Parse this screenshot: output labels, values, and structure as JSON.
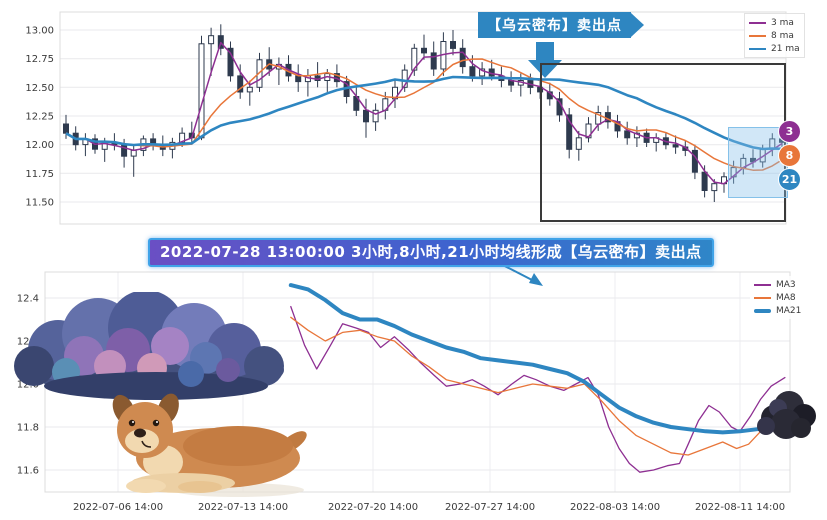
{
  "annotations": {
    "sell_callout": "【乌云密布】卖出点",
    "event_banner": "2022-07-28 13:00:00 3小时,8小时,21小时均线形成【乌云密布】卖出点"
  },
  "badges": [
    {
      "label": "3",
      "color": "#8e2f92"
    },
    {
      "label": "8",
      "color": "#e8763a"
    },
    {
      "label": "21",
      "color": "#2e86c1"
    }
  ],
  "colors": {
    "ma3": "#8e2f92",
    "ma8": "#e8763a",
    "ma21": "#2e86c1",
    "candle": "#2e3a4e",
    "banner_blue": "#2e86c1",
    "grid": "#e9e9ec",
    "highlight_box_border": "#3a3a3a",
    "highlight_region_fill": "#aed6f1"
  },
  "illustrations": [
    "storm-cloud-illustration",
    "dog-illustration",
    "dark-cloud-illustration"
  ],
  "chart_data": [
    {
      "type": "candlestick",
      "title": "",
      "legend": [
        "3 ma",
        "8 ma",
        "21 ma"
      ],
      "legend_position": "top-right",
      "grid": true,
      "ylim": [
        11.33,
        13.14
      ],
      "y_ticks": [
        "13.00",
        "12.75",
        "12.50",
        "12.25",
        "12.00",
        "11.75",
        "11.50"
      ],
      "overlays": [
        {
          "name": "3 ma",
          "type": "sma",
          "period": 3,
          "color": "#8e2f92"
        },
        {
          "name": "8 ma",
          "type": "sma",
          "period": 8,
          "color": "#e8763a"
        },
        {
          "name": "21 ma",
          "type": "sma",
          "period": 21,
          "color": "#2e86c1"
        }
      ],
      "annotations": {
        "callout": "【乌云密布】卖出点",
        "highlight_box_region": "declining right-hand section",
        "highlight_region": "final consolidation near moving-average cross"
      },
      "candles": [
        [
          12.18,
          12.26,
          12.05,
          12.1
        ],
        [
          12.1,
          12.16,
          11.95,
          12.0
        ],
        [
          12.0,
          12.1,
          11.9,
          12.05
        ],
        [
          12.05,
          12.09,
          11.92,
          11.96
        ],
        [
          11.96,
          12.06,
          11.85,
          12.02
        ],
        [
          12.02,
          12.1,
          11.95,
          12.0
        ],
        [
          12.0,
          12.05,
          11.8,
          11.9
        ],
        [
          11.9,
          12.0,
          11.72,
          11.95
        ],
        [
          11.95,
          12.08,
          11.9,
          12.05
        ],
        [
          12.05,
          12.1,
          11.95,
          12.0
        ],
        [
          12.0,
          12.08,
          11.9,
          11.96
        ],
        [
          11.96,
          12.06,
          11.88,
          12.02
        ],
        [
          12.02,
          12.15,
          11.98,
          12.1
        ],
        [
          12.1,
          12.2,
          12.0,
          12.06
        ],
        [
          12.06,
          12.95,
          12.04,
          12.88
        ],
        [
          12.88,
          13.02,
          12.6,
          12.95
        ],
        [
          12.95,
          13.05,
          12.78,
          12.84
        ],
        [
          12.84,
          12.9,
          12.55,
          12.6
        ],
        [
          12.6,
          12.7,
          12.4,
          12.46
        ],
        [
          12.46,
          12.56,
          12.34,
          12.5
        ],
        [
          12.5,
          12.8,
          12.46,
          12.74
        ],
        [
          12.74,
          12.85,
          12.6,
          12.66
        ],
        [
          12.66,
          12.76,
          12.52,
          12.7
        ],
        [
          12.7,
          12.78,
          12.55,
          12.6
        ],
        [
          12.6,
          12.7,
          12.46,
          12.55
        ],
        [
          12.55,
          12.66,
          12.42,
          12.6
        ],
        [
          12.6,
          12.72,
          12.5,
          12.56
        ],
        [
          12.56,
          12.66,
          12.46,
          12.62
        ],
        [
          12.62,
          12.7,
          12.5,
          12.55
        ],
        [
          12.55,
          12.6,
          12.36,
          12.42
        ],
        [
          12.42,
          12.5,
          12.25,
          12.3
        ],
        [
          12.3,
          12.4,
          12.06,
          12.2
        ],
        [
          12.2,
          12.36,
          12.12,
          12.3
        ],
        [
          12.3,
          12.46,
          12.22,
          12.4
        ],
        [
          12.4,
          12.56,
          12.32,
          12.5
        ],
        [
          12.5,
          12.7,
          12.46,
          12.65
        ],
        [
          12.65,
          12.88,
          12.6,
          12.84
        ],
        [
          12.84,
          12.96,
          12.74,
          12.8
        ],
        [
          12.8,
          12.9,
          12.6,
          12.66
        ],
        [
          12.66,
          12.98,
          12.6,
          12.9
        ],
        [
          12.9,
          13.0,
          12.78,
          12.84
        ],
        [
          12.84,
          12.92,
          12.62,
          12.68
        ],
        [
          12.68,
          12.78,
          12.55,
          12.6
        ],
        [
          12.6,
          12.72,
          12.52,
          12.66
        ],
        [
          12.66,
          12.74,
          12.56,
          12.6
        ],
        [
          12.6,
          12.68,
          12.5,
          12.56
        ],
        [
          12.56,
          12.64,
          12.46,
          12.52
        ],
        [
          12.52,
          12.62,
          12.42,
          12.56
        ],
        [
          12.56,
          12.62,
          12.44,
          12.5
        ],
        [
          12.5,
          12.58,
          12.4,
          12.46
        ],
        [
          12.46,
          12.54,
          12.34,
          12.4
        ],
        [
          12.4,
          12.46,
          12.2,
          12.26
        ],
        [
          12.26,
          12.32,
          11.88,
          11.96
        ],
        [
          11.96,
          12.12,
          11.86,
          12.06
        ],
        [
          12.06,
          12.24,
          12.02,
          12.18
        ],
        [
          12.18,
          12.34,
          12.12,
          12.28
        ],
        [
          12.28,
          12.34,
          12.14,
          12.2
        ],
        [
          12.2,
          12.26,
          12.06,
          12.12
        ],
        [
          12.12,
          12.2,
          12.0,
          12.06
        ],
        [
          12.06,
          12.16,
          11.98,
          12.1
        ],
        [
          12.1,
          12.14,
          11.98,
          12.02
        ],
        [
          12.02,
          12.1,
          11.94,
          12.06
        ],
        [
          12.06,
          12.1,
          11.96,
          12.0
        ],
        [
          12.0,
          12.08,
          11.92,
          11.98
        ],
        [
          11.98,
          12.04,
          11.9,
          11.95
        ],
        [
          11.95,
          12.0,
          11.7,
          11.76
        ],
        [
          11.76,
          11.82,
          11.54,
          11.6
        ],
        [
          11.6,
          11.7,
          11.5,
          11.66
        ],
        [
          11.66,
          11.76,
          11.58,
          11.72
        ],
        [
          11.72,
          11.86,
          11.66,
          11.8
        ],
        [
          11.8,
          11.92,
          11.74,
          11.88
        ],
        [
          11.88,
          11.96,
          11.8,
          11.85
        ],
        [
          11.85,
          12.0,
          11.8,
          11.96
        ],
        [
          11.96,
          12.1,
          11.9,
          12.05
        ],
        [
          12.05,
          12.16,
          11.96,
          12.02
        ]
      ]
    },
    {
      "type": "line",
      "title": "",
      "legend": [
        "MA3",
        "MA8",
        "MA21"
      ],
      "legend_position": "top-right",
      "grid": true,
      "ylim": [
        11.51,
        12.51
      ],
      "y_ticks": [
        "12.4",
        "12.2",
        "12.0",
        "11.8",
        "11.6"
      ],
      "x_ticks": [
        "2022-07-06 14:00",
        "2022-07-13 14:00",
        "2022-07-20 14:00",
        "2022-07-27 14:00",
        "2022-08-03 14:00",
        "2022-08-11 14:00"
      ],
      "x_unit": "days since 2022-07-06 14:00",
      "series": [
        {
          "name": "MA3",
          "color": "#8e2f92",
          "width": 1.3,
          "points": [
            [
              10,
              12.36
            ],
            [
              10.8,
              12.18
            ],
            [
              11.5,
              12.07
            ],
            [
              12.3,
              12.18
            ],
            [
              13,
              12.28
            ],
            [
              13.8,
              12.26
            ],
            [
              14.5,
              12.24
            ],
            [
              15.2,
              12.17
            ],
            [
              16,
              12.22
            ],
            [
              16.8,
              12.16
            ],
            [
              17.5,
              12.1
            ],
            [
              18.3,
              12.04
            ],
            [
              19,
              11.99
            ],
            [
              19.8,
              12.0
            ],
            [
              20.5,
              12.02
            ],
            [
              21.2,
              11.99
            ],
            [
              22,
              11.95
            ],
            [
              22.8,
              12.0
            ],
            [
              23.5,
              12.04
            ],
            [
              24.2,
              12.02
            ],
            [
              25,
              11.99
            ],
            [
              25.8,
              11.97
            ],
            [
              26.5,
              12.0
            ],
            [
              27.2,
              12.03
            ],
            [
              27.8,
              11.95
            ],
            [
              28.4,
              11.8
            ],
            [
              29,
              11.7
            ],
            [
              29.6,
              11.63
            ],
            [
              30.2,
              11.59
            ],
            [
              31,
              11.6
            ],
            [
              31.8,
              11.62
            ],
            [
              32.5,
              11.63
            ],
            [
              33,
              11.72
            ],
            [
              33.6,
              11.83
            ],
            [
              34.2,
              11.9
            ],
            [
              34.8,
              11.87
            ],
            [
              35.5,
              11.8
            ],
            [
              36,
              11.78
            ],
            [
              36.6,
              11.85
            ],
            [
              37.2,
              11.93
            ],
            [
              37.8,
              11.99
            ],
            [
              38.6,
              12.03
            ]
          ]
        },
        {
          "name": "MA8",
          "color": "#e8763a",
          "width": 1.3,
          "points": [
            [
              10,
              12.31
            ],
            [
              11,
              12.25
            ],
            [
              12,
              12.2
            ],
            [
              13,
              12.24
            ],
            [
              14,
              12.25
            ],
            [
              15,
              12.22
            ],
            [
              16,
              12.2
            ],
            [
              17,
              12.13
            ],
            [
              18,
              12.08
            ],
            [
              19,
              12.02
            ],
            [
              20,
              12.0
            ],
            [
              21,
              11.98
            ],
            [
              22,
              11.96
            ],
            [
              23,
              11.98
            ],
            [
              24,
              12.0
            ],
            [
              25,
              11.99
            ],
            [
              26,
              11.98
            ],
            [
              27,
              12.0
            ],
            [
              28,
              11.92
            ],
            [
              29,
              11.83
            ],
            [
              30,
              11.76
            ],
            [
              31,
              11.72
            ],
            [
              32,
              11.68
            ],
            [
              33,
              11.67
            ],
            [
              34,
              11.7
            ],
            [
              35,
              11.73
            ],
            [
              35.8,
              11.7
            ],
            [
              36.5,
              11.72
            ],
            [
              37.2,
              11.78
            ],
            [
              38,
              11.83
            ],
            [
              38.6,
              11.87
            ]
          ]
        },
        {
          "name": "MA21",
          "color": "#2e86c1",
          "width": 4,
          "points": [
            [
              10,
              12.46
            ],
            [
              11,
              12.44
            ],
            [
              12,
              12.39
            ],
            [
              13,
              12.33
            ],
            [
              14,
              12.3
            ],
            [
              15,
              12.3
            ],
            [
              16,
              12.27
            ],
            [
              17,
              12.23
            ],
            [
              18,
              12.2
            ],
            [
              19,
              12.17
            ],
            [
              20,
              12.15
            ],
            [
              21,
              12.12
            ],
            [
              22,
              12.11
            ],
            [
              23,
              12.1
            ],
            [
              24,
              12.09
            ],
            [
              25,
              12.07
            ],
            [
              26,
              12.05
            ],
            [
              27,
              12.01
            ],
            [
              28,
              11.95
            ],
            [
              29,
              11.89
            ],
            [
              30,
              11.85
            ],
            [
              31,
              11.82
            ],
            [
              32,
              11.8
            ],
            [
              33,
              11.79
            ],
            [
              34,
              11.78
            ],
            [
              35,
              11.775
            ],
            [
              36,
              11.78
            ],
            [
              37,
              11.79
            ],
            [
              38,
              11.81
            ],
            [
              38.6,
              11.84
            ]
          ]
        }
      ]
    }
  ]
}
